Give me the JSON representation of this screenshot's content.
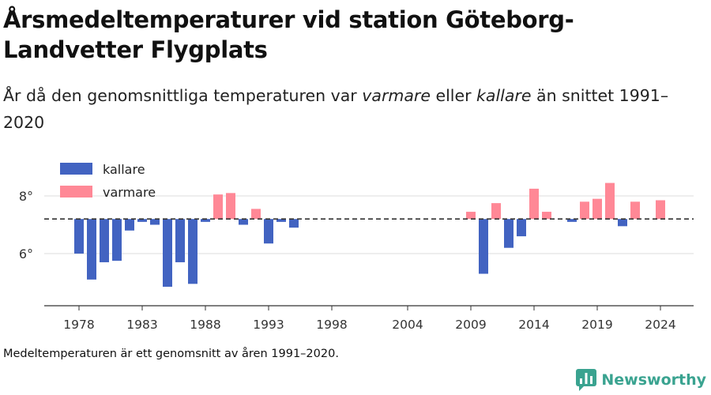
{
  "title": "Årsmedeltemperaturer vid station Göteborg-Landvetter Flygplats",
  "subtitle": {
    "prefix": "År då den genomsnittliga temperaturen var ",
    "warm_word": "varmare",
    "middle": " eller ",
    "cold_word": "kallare",
    "suffix": " än snittet 1991–2020"
  },
  "caption": "Medeltemperaturen är ett genomsnitt av åren 1991–2020.",
  "brand": "Newsworthy",
  "colors": {
    "cold": "#4263c1",
    "warm": "#ff8896",
    "brand": "#3aa390"
  },
  "chart_data": {
    "type": "bar",
    "baseline": 7.2,
    "ylim": [
      4.5,
      9.5
    ],
    "yticks": [
      6,
      8
    ],
    "ytick_labels": [
      "6°",
      "8°"
    ],
    "xlim": [
      1975.5,
      2027
    ],
    "xticks": [
      1978,
      1983,
      1988,
      1993,
      1998,
      2004,
      2009,
      2014,
      2019,
      2024
    ],
    "legend": [
      "kallare",
      "varmare"
    ],
    "legend_position": "top-left",
    "grid": true,
    "points": [
      {
        "year": 1978,
        "value": 6.0
      },
      {
        "year": 1979,
        "value": 5.1
      },
      {
        "year": 1980,
        "value": 5.7
      },
      {
        "year": 1981,
        "value": 5.75
      },
      {
        "year": 1982,
        "value": 6.8
      },
      {
        "year": 1983,
        "value": 7.1
      },
      {
        "year": 1984,
        "value": 7.0
      },
      {
        "year": 1985,
        "value": 4.85
      },
      {
        "year": 1986,
        "value": 5.7
      },
      {
        "year": 1987,
        "value": 4.95
      },
      {
        "year": 1988,
        "value": 7.1
      },
      {
        "year": 1989,
        "value": 8.05
      },
      {
        "year": 1990,
        "value": 8.1
      },
      {
        "year": 1991,
        "value": 7.0
      },
      {
        "year": 1992,
        "value": 7.55
      },
      {
        "year": 1993,
        "value": 6.35
      },
      {
        "year": 1994,
        "value": 7.1
      },
      {
        "year": 1995,
        "value": 6.9
      },
      {
        "year": 2009,
        "value": 7.45
      },
      {
        "year": 2010,
        "value": 5.3
      },
      {
        "year": 2011,
        "value": 7.75
      },
      {
        "year": 2012,
        "value": 6.2
      },
      {
        "year": 2013,
        "value": 6.6
      },
      {
        "year": 2014,
        "value": 8.25
      },
      {
        "year": 2015,
        "value": 7.45
      },
      {
        "year": 2017,
        "value": 7.1
      },
      {
        "year": 2018,
        "value": 7.8
      },
      {
        "year": 2019,
        "value": 7.9
      },
      {
        "year": 2020,
        "value": 8.45
      },
      {
        "year": 2021,
        "value": 6.95
      },
      {
        "year": 2022,
        "value": 7.8
      },
      {
        "year": 2024,
        "value": 7.85
      }
    ]
  }
}
